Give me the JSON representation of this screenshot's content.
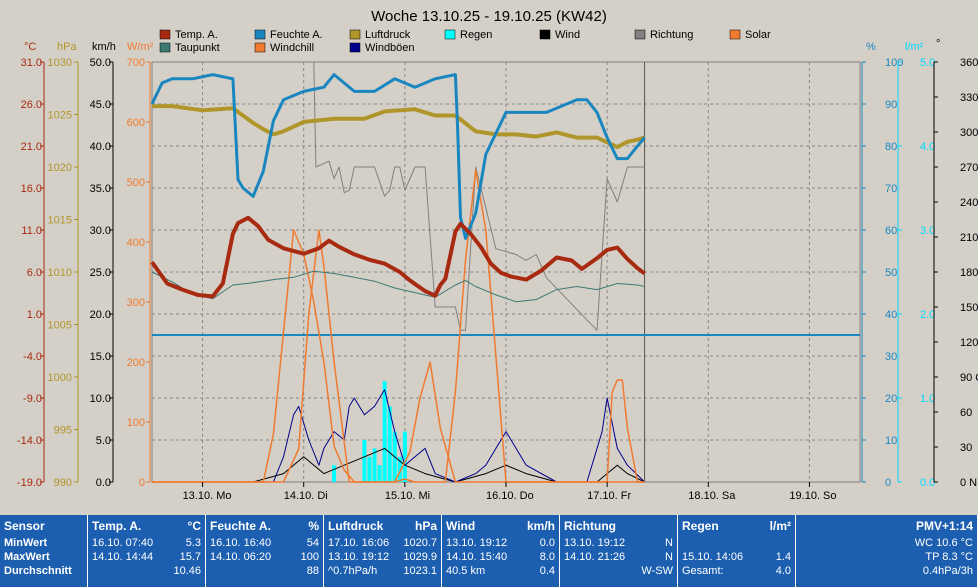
{
  "title": "Woche 13.10.25 - 19.10.25 (KW42)",
  "colors": {
    "temp": "#a82a10",
    "dewpoint": "#3e7a74",
    "humidity": "#1a86c0",
    "windchill": "#f07a30",
    "pressure": "#b0962a",
    "gusts": "#00008b",
    "rain": "#00e8ff",
    "wind": "#000000",
    "direction": "#808080",
    "solar": "#f07a30",
    "plot_bg": "#d4d0c8",
    "table_bg": "#1c5fb0"
  },
  "legend": [
    {
      "label": "Temp. A.",
      "color": "#a82a10"
    },
    {
      "label": "Taupunkt",
      "color": "#3e7a74"
    },
    {
      "label": "Feuchte A.",
      "color": "#1a86c0"
    },
    {
      "label": "Windchill",
      "color": "#f07a30"
    },
    {
      "label": "Luftdruck",
      "color": "#b0962a"
    },
    {
      "label": "Windböen",
      "color": "#00008b"
    },
    {
      "label": "Regen",
      "color": "#00ffff"
    },
    {
      "label": "Wind",
      "color": "#000000"
    },
    {
      "label": "Richtung",
      "color": "#808080"
    },
    {
      "label": "Solar",
      "color": "#f07a30"
    }
  ],
  "chart_data": {
    "type": "line",
    "title": "Woche 13.10.25 - 19.10.25 (KW42)",
    "x_range": [
      "13.10. 00:00",
      "20.10. 00:00"
    ],
    "x_ticks": [
      "13.10. Mo",
      "14.10. Di",
      "15.10. Mi",
      "16.10. Do",
      "17.10. Fr",
      "18.10. Sa",
      "19.10. So"
    ],
    "axes": {
      "temp": {
        "unit": "°C",
        "ticks": [
          "31.0",
          "26.0",
          "21.0",
          "16.0",
          "11.0",
          "6.0",
          "1.0",
          "-4.0",
          "-9.0",
          "-14.0",
          "-19.0"
        ],
        "range": [
          -19,
          36
        ]
      },
      "pressure": {
        "unit": "hPa",
        "ticks": [
          "1030",
          "1025",
          "1020",
          "1015",
          "1010",
          "1005",
          "1000",
          "995",
          "990"
        ],
        "range": [
          990,
          1030
        ]
      },
      "wind": {
        "unit": "km/h",
        "ticks": [
          "50.0",
          "45.0",
          "40.0",
          "35.0",
          "30.0",
          "25.0",
          "20.0",
          "15.0",
          "10.0",
          "5.0",
          "0.0"
        ],
        "range": [
          0,
          50
        ]
      },
      "solar": {
        "unit": "W/m²",
        "ticks": [
          "700",
          "600",
          "500",
          "400",
          "300",
          "200",
          "100",
          "0"
        ],
        "range": [
          0,
          700
        ]
      },
      "humidity": {
        "unit": "%",
        "ticks": [
          "100",
          "90",
          "80",
          "70",
          "60",
          "50",
          "40",
          "30",
          "20",
          "10",
          "0"
        ],
        "range": [
          0,
          100
        ]
      },
      "rain": {
        "unit": "l/m²",
        "ticks": [
          "5.0",
          "4.0",
          "3.0",
          "2.0",
          "1.0",
          "0.0"
        ],
        "range": [
          0,
          5
        ]
      },
      "direction": {
        "unit": "°",
        "ticks": [
          "360 N",
          "330",
          "300",
          "270 W",
          "240",
          "210",
          "180 S",
          "150",
          "120",
          "90 O",
          "60",
          "30",
          "0 N"
        ],
        "range": [
          0,
          360
        ]
      }
    },
    "series": [
      {
        "name": "Temp. A.",
        "axis": "temp",
        "color": "#a82a10",
        "x": [
          0.0,
          0.15,
          0.3,
          0.45,
          0.6,
          0.7,
          0.8,
          0.85,
          0.95,
          1.05,
          1.15,
          1.3,
          1.5,
          1.65,
          1.75,
          1.85,
          2.0,
          2.15,
          2.3,
          2.45,
          2.55,
          2.7,
          2.8,
          2.85,
          2.9,
          3.0,
          3.05,
          3.15,
          3.25,
          3.35,
          3.45,
          3.55,
          3.7,
          3.85,
          4.0,
          4.15,
          4.25,
          4.4,
          4.5,
          4.6,
          4.7,
          4.8,
          4.87
        ],
        "values": [
          9.8,
          7.0,
          6.2,
          5.5,
          5.3,
          7.0,
          13.5,
          14.9,
          15.6,
          14.5,
          12.7,
          11.6,
          10.9,
          11.6,
          12.6,
          11.8,
          10.8,
          10.1,
          9.6,
          8.5,
          7.4,
          6.0,
          5.4,
          6.8,
          7.6,
          13.8,
          14.8,
          13.5,
          11.8,
          9.6,
          8.4,
          7.9,
          7.5,
          8.7,
          10.4,
          10.0,
          8.9,
          10.3,
          11.4,
          11.7,
          10.2,
          9.0,
          8.3
        ]
      },
      {
        "name": "Taupunkt",
        "axis": "temp",
        "color": "#3e7a74",
        "x": [
          0.0,
          0.2,
          0.4,
          0.6,
          0.8,
          1.0,
          1.2,
          1.4,
          1.6,
          1.8,
          2.0,
          2.2,
          2.4,
          2.6,
          2.8,
          3.0,
          3.1,
          3.2,
          3.4,
          3.6,
          3.8,
          4.0,
          4.2,
          4.4,
          4.6,
          4.8,
          4.87
        ],
        "values": [
          8.5,
          7.2,
          5.6,
          5.0,
          6.8,
          7.1,
          7.5,
          7.8,
          8.6,
          8.3,
          7.8,
          7.3,
          6.4,
          5.8,
          5.2,
          6.8,
          7.4,
          6.6,
          5.5,
          4.6,
          4.9,
          6.2,
          6.6,
          6.2,
          7.0,
          6.8,
          6.6
        ]
      },
      {
        "name": "Feuchte A.",
        "axis": "humidity",
        "color": "#1a86c0",
        "x": [
          0.0,
          0.1,
          0.2,
          0.4,
          0.6,
          0.8,
          0.85,
          0.9,
          1.0,
          1.1,
          1.2,
          1.3,
          1.5,
          1.7,
          1.8,
          1.9,
          2.0,
          2.2,
          2.4,
          2.6,
          2.8,
          3.0,
          3.02,
          3.05,
          3.1,
          3.2,
          3.3,
          3.4,
          3.5,
          3.7,
          3.9,
          4.1,
          4.2,
          4.3,
          4.4,
          4.5,
          4.6,
          4.7,
          4.8,
          4.87
        ],
        "values": [
          90,
          95,
          96,
          96,
          97,
          96,
          72,
          70,
          68,
          74,
          86,
          91,
          93,
          94,
          97,
          95,
          93,
          93,
          96,
          94,
          96,
          97,
          85,
          63,
          58,
          64,
          78,
          83,
          88,
          88,
          88,
          90,
          91,
          91,
          88,
          82,
          77,
          77,
          80,
          82
        ]
      },
      {
        "name": "Windchill",
        "axis": "solar",
        "color": "#f07a30",
        "x": [
          0.0,
          0.3,
          0.9,
          1.0,
          1.1,
          1.2,
          1.3,
          1.4,
          1.5,
          1.6,
          1.7,
          1.8,
          1.9,
          2.0,
          2.2,
          2.4,
          2.5,
          2.6,
          2.7,
          2.75,
          2.8,
          2.9,
          3.0,
          3.1,
          3.2,
          3.3,
          3.5,
          3.7,
          3.8,
          3.9,
          4.0,
          4.1,
          4.2,
          4.3,
          4.4,
          4.5,
          4.87
        ],
        "values": [
          0,
          0,
          0,
          0,
          0,
          80,
          250,
          420,
          380,
          300,
          200,
          60,
          20,
          0,
          0,
          0,
          5,
          0,
          0,
          0,
          0,
          0,
          150,
          370,
          520,
          420,
          0,
          0,
          0,
          0,
          0,
          0,
          0,
          0,
          0,
          0,
          0
        ]
      },
      {
        "name": "Solar",
        "axis": "solar",
        "color": "#f07a30",
        "x": [
          0.0,
          1.0,
          1.3,
          1.45,
          1.55,
          1.65,
          1.7,
          1.8,
          1.95,
          2.2,
          2.4,
          2.55,
          2.65,
          2.75,
          2.85,
          3.0,
          3.5,
          3.6,
          3.7,
          3.8,
          3.9,
          4.0,
          4.1,
          4.3,
          4.5,
          4.55,
          4.6,
          4.65,
          4.7,
          4.8,
          4.87
        ],
        "values": [
          0,
          0,
          0,
          55,
          280,
          420,
          360,
          200,
          0,
          0,
          0,
          50,
          140,
          200,
          90,
          0,
          0,
          0,
          0,
          0,
          0,
          0,
          0,
          0,
          0,
          150,
          170,
          170,
          90,
          0,
          0
        ]
      },
      {
        "name": "Luftdruck",
        "axis": "pressure",
        "color": "#b0962a",
        "x": [
          0.0,
          0.2,
          0.5,
          0.8,
          1.0,
          1.1,
          1.2,
          1.3,
          1.5,
          1.8,
          2.1,
          2.3,
          2.6,
          2.8,
          3.0,
          3.2,
          3.4,
          3.6,
          3.8,
          4.0,
          4.2,
          4.4,
          4.6,
          4.7,
          4.8,
          4.87
        ],
        "values": [
          1025.8,
          1025.8,
          1025.4,
          1025.6,
          1024.2,
          1023.6,
          1023.1,
          1023.4,
          1024.3,
          1024.6,
          1024.6,
          1025.3,
          1025.5,
          1024.9,
          1024.9,
          1023.4,
          1023.1,
          1023.1,
          1022.9,
          1023.3,
          1022.8,
          1022.8,
          1021.9,
          1022.4,
          1022.6,
          1022.8
        ]
      },
      {
        "name": "Windböen",
        "axis": "wind",
        "color": "#00008b",
        "x": [
          0.0,
          1.0,
          1.2,
          1.3,
          1.4,
          1.45,
          1.55,
          1.65,
          1.7,
          1.8,
          1.9,
          1.95,
          2.0,
          2.1,
          2.2,
          2.3,
          2.4,
          2.5,
          2.6,
          2.7,
          2.8,
          3.0,
          3.2,
          3.3,
          3.4,
          3.5,
          3.6,
          3.7,
          4.0,
          4.2,
          4.3,
          4.45,
          4.5,
          4.6,
          4.7,
          4.87
        ],
        "values": [
          0,
          0,
          0,
          3,
          8,
          9,
          5,
          2,
          4,
          6,
          5,
          9,
          10,
          8,
          9,
          11,
          6,
          2,
          3,
          4,
          1,
          0,
          1,
          2,
          4,
          6,
          4,
          2,
          0,
          0,
          0,
          6,
          10,
          4,
          2,
          0
        ]
      },
      {
        "name": "Wind",
        "axis": "wind",
        "color": "#000000",
        "x": [
          0.0,
          1.0,
          1.3,
          1.5,
          1.7,
          1.9,
          2.1,
          2.3,
          2.5,
          2.7,
          3.0,
          3.3,
          3.5,
          3.7,
          4.0,
          4.4,
          4.6,
          4.7,
          4.87
        ],
        "values": [
          0,
          0,
          1,
          3,
          1,
          2,
          3,
          4,
          2,
          1,
          0,
          1,
          2,
          1,
          0,
          0,
          2,
          1,
          0
        ]
      },
      {
        "name": "Regen",
        "axis": "rain",
        "color": "#00ffff",
        "x": [
          1.8,
          2.1,
          2.15,
          2.2,
          2.25,
          2.3,
          2.35,
          2.4,
          2.45,
          2.5
        ],
        "values": [
          0.2,
          0.5,
          0.3,
          0.4,
          0.2,
          1.2,
          0.9,
          0.6,
          0.3,
          0.6
        ]
      },
      {
        "name": "Richtung",
        "axis": "direction",
        "color": "#808080",
        "x": [
          1.6,
          1.62,
          1.75,
          1.8,
          1.85,
          1.9,
          1.95,
          2.0,
          2.2,
          2.3,
          2.35,
          2.4,
          2.45,
          2.5,
          2.6,
          2.7,
          2.8,
          3.0,
          3.05,
          3.1,
          3.2,
          3.4,
          3.6,
          3.7,
          3.8,
          3.9,
          4.4,
          4.5,
          4.6,
          4.7,
          4.87
        ],
        "values": [
          360,
          270,
          275,
          260,
          270,
          248,
          250,
          270,
          270,
          245,
          250,
          270,
          270,
          250,
          270,
          270,
          150,
          150,
          130,
          130,
          270,
          200,
          195,
          190,
          195,
          175,
          130,
          260,
          240,
          270,
          270
        ]
      }
    ],
    "reference_line": {
      "axis": "humidity",
      "value": 35,
      "color": "#1a86c0"
    },
    "grid": true
  },
  "table": [
    {
      "header": "Sensor",
      "unit": "",
      "rows": [
        [
          "MinWert",
          ""
        ],
        [
          "MaxWert",
          ""
        ],
        [
          "Durchschnitt",
          ""
        ]
      ]
    },
    {
      "header": "Temp. A.",
      "unit": "°C",
      "rows": [
        [
          "16.10.  07:40",
          "5.3"
        ],
        [
          "14.10.  14:44",
          "15.7"
        ],
        [
          "",
          "10.46"
        ]
      ]
    },
    {
      "header": "Feuchte A.",
      "unit": "%",
      "rows": [
        [
          "16.10.  16:40",
          "54"
        ],
        [
          "14.10.  06:20",
          "100"
        ],
        [
          "",
          "88"
        ]
      ]
    },
    {
      "header": "Luftdruck",
      "unit": "hPa",
      "rows": [
        [
          "17.10.  16:06",
          "1020.7"
        ],
        [
          "13.10.  19:12",
          "1029.9"
        ],
        [
          "^0.7hPa/h",
          "1023.1"
        ]
      ]
    },
    {
      "header": "Wind",
      "unit": "km/h",
      "rows": [
        [
          "13.10.  19:12",
          "0.0"
        ],
        [
          "14.10.  15:40",
          "8.0"
        ],
        [
          "40.5 km",
          "0.4"
        ]
      ]
    },
    {
      "header": "Richtung",
      "unit": "",
      "rows": [
        [
          "13.10.  19:12",
          "N"
        ],
        [
          "14.10.  21:26",
          "N"
        ],
        [
          "",
          "W-SW"
        ]
      ]
    },
    {
      "header": "Regen",
      "unit": "l/m²",
      "rows": [
        [
          "",
          ""
        ],
        [
          "15.10.  14:06",
          "1.4"
        ],
        [
          "Gesamt:",
          "4.0"
        ]
      ]
    },
    {
      "header": "",
      "unit": "PMV+1:14",
      "rows": [
        [
          "",
          "WC 10.6 °C"
        ],
        [
          "",
          "TP 8.3 °C"
        ],
        [
          "",
          "0.4hPa/3h"
        ]
      ]
    }
  ]
}
